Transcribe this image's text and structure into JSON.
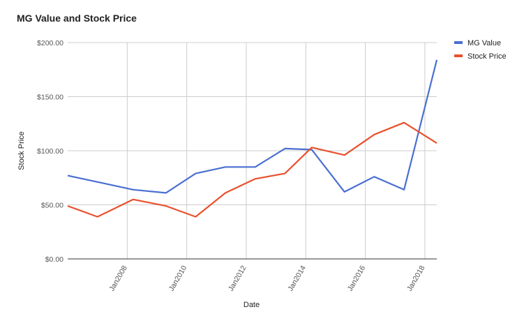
{
  "chart_data": {
    "type": "line",
    "title": "MG Value and Stock Price",
    "xlabel": "Date",
    "ylabel": "Stock Price",
    "ylim": [
      0,
      200
    ],
    "y_ticks": [
      "$0.00",
      "$50.00",
      "$100.00",
      "$150.00",
      "$200.00"
    ],
    "y_tick_values": [
      0,
      50,
      100,
      150,
      200
    ],
    "x_ticks": [
      "Jan2008",
      "Jan2010",
      "Jan2012",
      "Jan2014",
      "Jan2016",
      "Jan2018"
    ],
    "x_tick_values": [
      2008,
      2010,
      2012,
      2014,
      2016,
      2018
    ],
    "xlim": [
      2006.0,
      2018.4
    ],
    "legend_position": "right",
    "grid": true,
    "series": [
      {
        "name": "MG Value",
        "color": "#4a6fd1",
        "x": [
          2006.0,
          2008.2,
          2009.3,
          2010.3,
          2011.3,
          2012.3,
          2013.3,
          2014.2,
          2015.3,
          2016.3,
          2017.3,
          2018.4
        ],
        "values": [
          77,
          64,
          61,
          79,
          85,
          85,
          102,
          101,
          62,
          76,
          64,
          184
        ]
      },
      {
        "name": "Stock Price",
        "color": "#e8512e",
        "x": [
          2006.0,
          2007.0,
          2008.2,
          2009.3,
          2010.3,
          2011.3,
          2012.3,
          2013.3,
          2014.2,
          2015.3,
          2016.3,
          2017.3,
          2018.4
        ],
        "values": [
          49,
          39,
          55,
          49,
          39,
          61,
          74,
          79,
          103,
          96,
          115,
          126,
          107
        ]
      }
    ]
  }
}
